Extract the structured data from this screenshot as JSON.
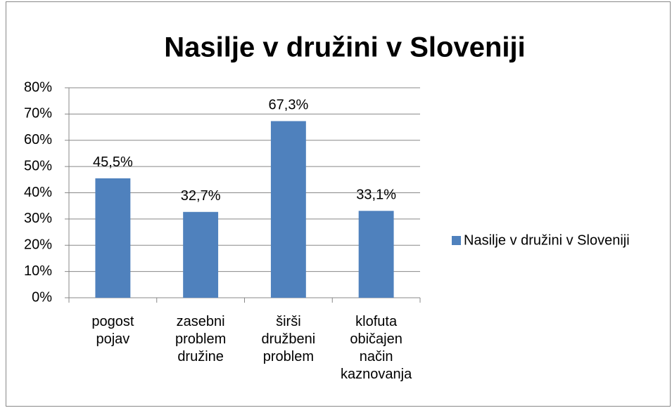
{
  "chart_data": {
    "type": "bar",
    "title": "Nasilje v družini v Sloveniji",
    "categories": [
      "pogost pojav",
      "zasebni problem družine",
      "širši družbeni problem",
      "klofuta običajen način kaznovanja"
    ],
    "series": [
      {
        "name": "Nasilje v družini v Sloveniji",
        "color": "#4f81bd",
        "values": [
          45.5,
          32.7,
          67.3,
          33.1
        ],
        "value_labels": [
          "45,5%",
          "32,7%",
          "67,3%",
          "33,1%"
        ]
      }
    ],
    "ylim": [
      0,
      80
    ],
    "yticks": [
      {
        "value": 0,
        "label": "0%"
      },
      {
        "value": 10,
        "label": "10%"
      },
      {
        "value": 20,
        "label": "20%"
      },
      {
        "value": 30,
        "label": "30%"
      },
      {
        "value": 40,
        "label": "40%"
      },
      {
        "value": 50,
        "label": "50%"
      },
      {
        "value": 60,
        "label": "60%"
      },
      {
        "value": 70,
        "label": "70%"
      },
      {
        "value": 80,
        "label": "80%"
      }
    ],
    "grid": true,
    "legend": "right"
  }
}
